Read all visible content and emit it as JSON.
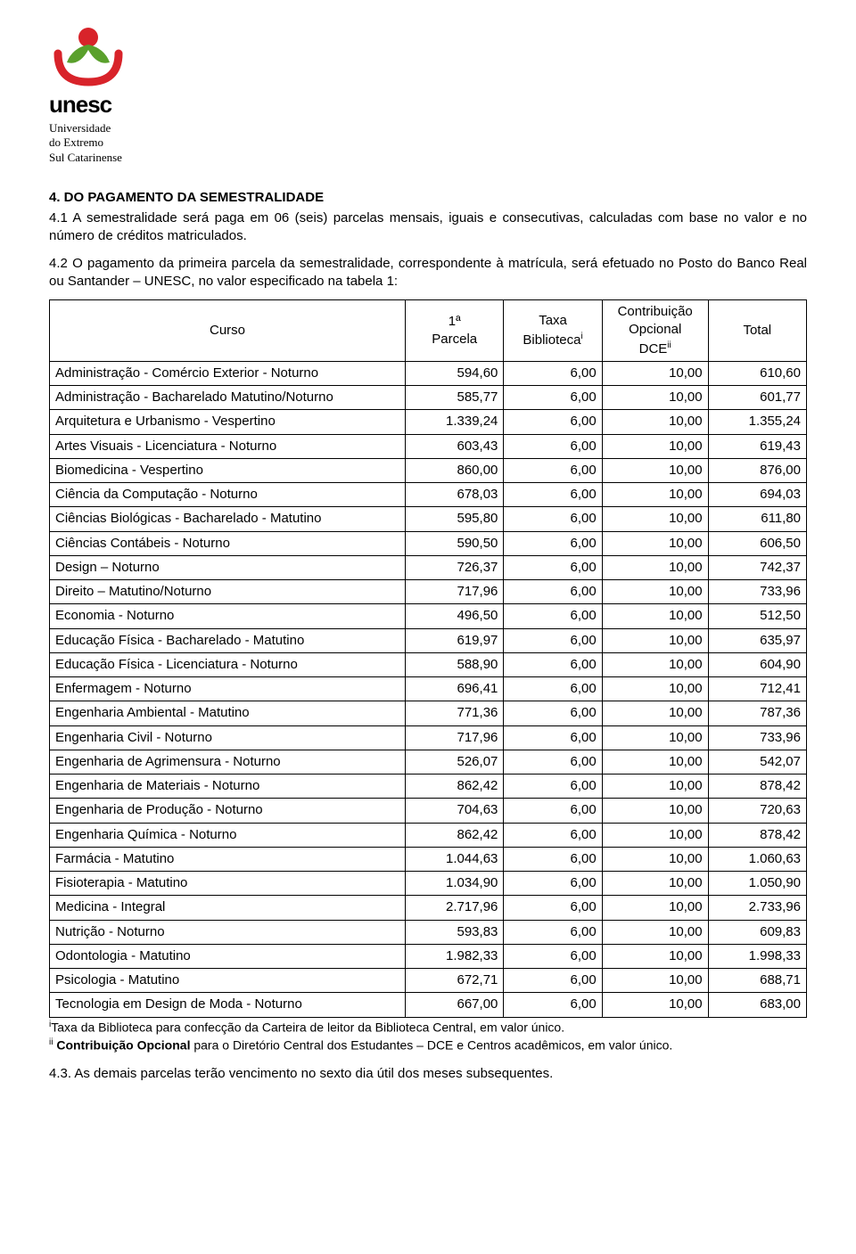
{
  "logo": {
    "word": "unesc",
    "sub1": "Universidade",
    "sub2": "do Extremo",
    "sub3": "Sul Catarinense",
    "leaf_green": "#5aa02c",
    "arc_red": "#d8232a",
    "dot_red": "#d8232a"
  },
  "heading": "4. DO PAGAMENTO DA SEMESTRALIDADE",
  "p1": "4.1 A semestralidade será paga em 06 (seis) parcelas mensais, iguais e consecutivas, calculadas com base no valor e no número de créditos matriculados.",
  "p2": "4.2 O pagamento da primeira parcela da semestralidade, correspondente à matrícula, será efetuado no Posto do Banco Real ou Santander – UNESC, no valor especificado na tabela 1:",
  "table": {
    "columns": {
      "c0": "Curso",
      "c1a": "1ª",
      "c1b": "Parcela",
      "c2a": "Taxa",
      "c2b": "Biblioteca",
      "c2sup": "i",
      "c3a": "Contribuição",
      "c3b": "Opcional",
      "c3c": "DCE",
      "c3sup": "ii",
      "c4": "Total"
    },
    "col_widths": [
      "47%",
      "13%",
      "13%",
      "14%",
      "13%"
    ],
    "rows": [
      {
        "course": "Administração - Comércio Exterior - Noturno",
        "p": "594,60",
        "b": "6,00",
        "d": "10,00",
        "t": "610,60"
      },
      {
        "course": "Administração - Bacharelado Matutino/Noturno",
        "p": "585,77",
        "b": "6,00",
        "d": "10,00",
        "t": "601,77"
      },
      {
        "course": "Arquitetura e Urbanismo - Vespertino",
        "p": "1.339,24",
        "b": "6,00",
        "d": "10,00",
        "t": "1.355,24"
      },
      {
        "course": "Artes Visuais - Licenciatura - Noturno",
        "p": "603,43",
        "b": "6,00",
        "d": "10,00",
        "t": "619,43"
      },
      {
        "course": "Biomedicina - Vespertino",
        "p": "860,00",
        "b": "6,00",
        "d": "10,00",
        "t": "876,00"
      },
      {
        "course": "Ciência da Computação - Noturno",
        "p": "678,03",
        "b": "6,00",
        "d": "10,00",
        "t": "694,03"
      },
      {
        "course": "Ciências Biológicas - Bacharelado - Matutino",
        "p": "595,80",
        "b": "6,00",
        "d": "10,00",
        "t": "611,80"
      },
      {
        "course": "Ciências Contábeis - Noturno",
        "p": "590,50",
        "b": "6,00",
        "d": "10,00",
        "t": "606,50"
      },
      {
        "course": "Design – Noturno",
        "p": "726,37",
        "b": "6,00",
        "d": "10,00",
        "t": "742,37"
      },
      {
        "course": "Direito – Matutino/Noturno",
        "p": "717,96",
        "b": "6,00",
        "d": "10,00",
        "t": "733,96"
      },
      {
        "course": "Economia - Noturno",
        "p": "496,50",
        "b": "6,00",
        "d": "10,00",
        "t": "512,50"
      },
      {
        "course": "Educação Física - Bacharelado - Matutino",
        "p": "619,97",
        "b": "6,00",
        "d": "10,00",
        "t": "635,97"
      },
      {
        "course": "Educação Física - Licenciatura - Noturno",
        "p": "588,90",
        "b": "6,00",
        "d": "10,00",
        "t": "604,90"
      },
      {
        "course": "Enfermagem - Noturno",
        "p": "696,41",
        "b": "6,00",
        "d": "10,00",
        "t": "712,41"
      },
      {
        "course": "Engenharia Ambiental - Matutino",
        "p": "771,36",
        "b": "6,00",
        "d": "10,00",
        "t": "787,36"
      },
      {
        "course": "Engenharia Civil - Noturno",
        "p": "717,96",
        "b": "6,00",
        "d": "10,00",
        "t": "733,96"
      },
      {
        "course": "Engenharia de Agrimensura - Noturno",
        "p": "526,07",
        "b": "6,00",
        "d": "10,00",
        "t": "542,07"
      },
      {
        "course": "Engenharia de Materiais - Noturno",
        "p": "862,42",
        "b": "6,00",
        "d": "10,00",
        "t": "878,42"
      },
      {
        "course": "Engenharia de Produção - Noturno",
        "p": "704,63",
        "b": "6,00",
        "d": "10,00",
        "t": "720,63"
      },
      {
        "course": "Engenharia Química - Noturno",
        "p": "862,42",
        "b": "6,00",
        "d": "10,00",
        "t": "878,42"
      },
      {
        "course": "Farmácia - Matutino",
        "p": "1.044,63",
        "b": "6,00",
        "d": "10,00",
        "t": "1.060,63"
      },
      {
        "course": "Fisioterapia - Matutino",
        "p": "1.034,90",
        "b": "6,00",
        "d": "10,00",
        "t": "1.050,90"
      },
      {
        "course": "Medicina - Integral",
        "p": "2.717,96",
        "b": "6,00",
        "d": "10,00",
        "t": "2.733,96"
      },
      {
        "course": "Nutrição - Noturno",
        "p": "593,83",
        "b": "6,00",
        "d": "10,00",
        "t": "609,83"
      },
      {
        "course": "Odontologia - Matutino",
        "p": "1.982,33",
        "b": "6,00",
        "d": "10,00",
        "t": "1.998,33"
      },
      {
        "course": "Psicologia - Matutino",
        "p": "672,71",
        "b": "6,00",
        "d": "10,00",
        "t": "688,71"
      },
      {
        "course": "Tecnologia em Design de Moda - Noturno",
        "p": "667,00",
        "b": "6,00",
        "d": "10,00",
        "t": "683,00"
      }
    ]
  },
  "footnote1_sup": "i",
  "footnote1": "Taxa da Biblioteca para confecção da Carteira de leitor da Biblioteca Central, em valor único.",
  "footnote2_sup": "ii",
  "footnote2_bold": "Contribuição Opcional",
  "footnote2_rest": " para o Diretório Central dos Estudantes – DCE e Centros acadêmicos, em valor único.",
  "closing": "4.3. As demais parcelas terão vencimento no sexto dia útil dos meses subsequentes."
}
